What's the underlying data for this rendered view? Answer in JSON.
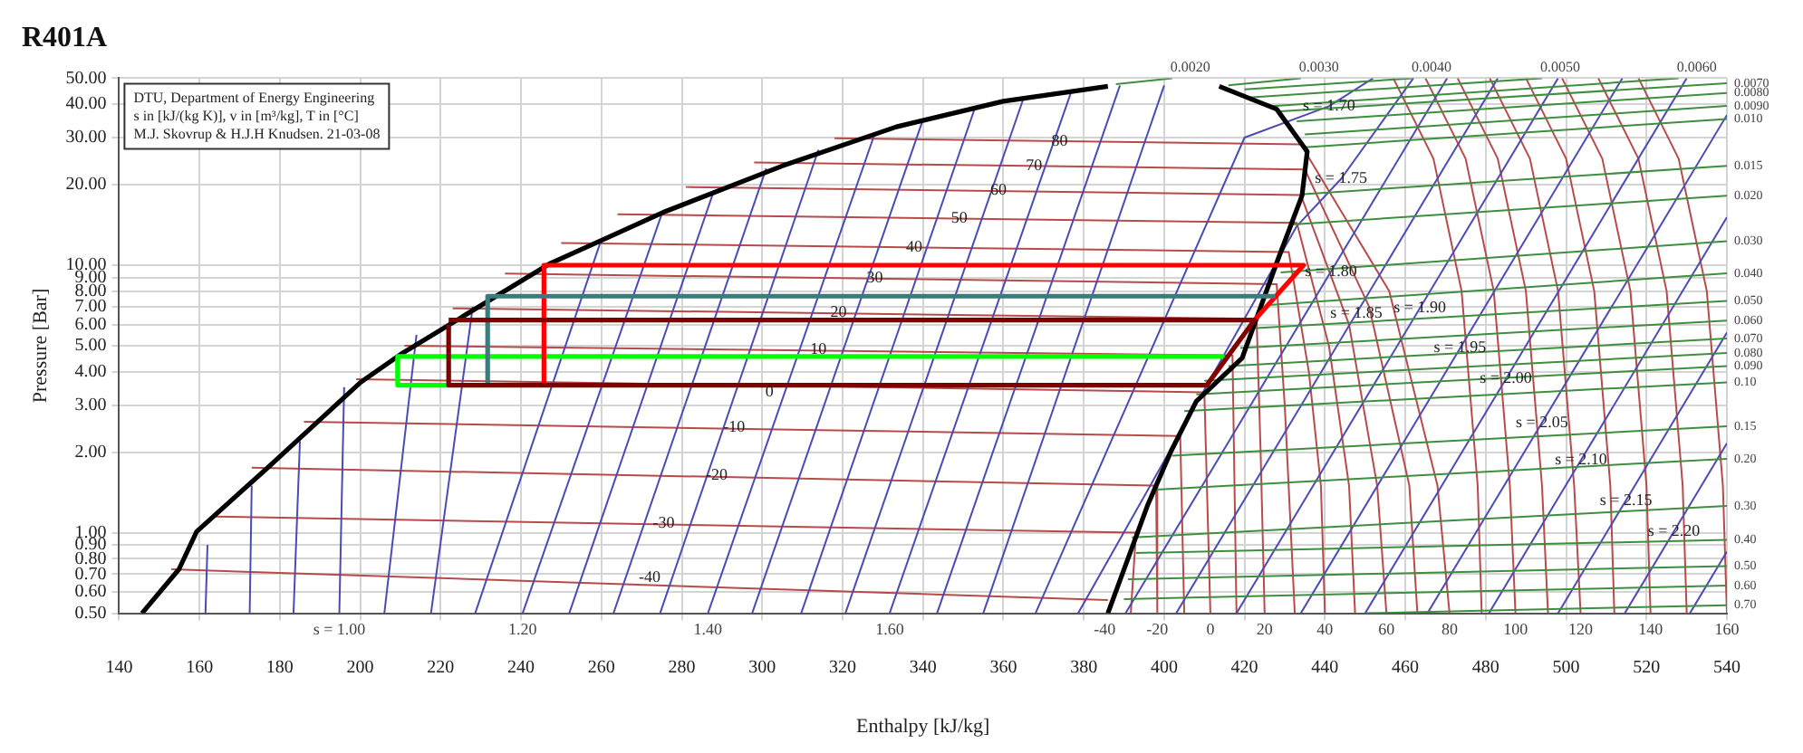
{
  "chart_data": {
    "type": "line",
    "title": "R401A",
    "xlabel": "Enthalpy [kJ/kg]",
    "ylabel": "Pressure [Bar]",
    "log": "y",
    "grid": true,
    "legend": false,
    "xlim": [
      140,
      540
    ],
    "xticks": [
      140,
      160,
      180,
      200,
      220,
      240,
      260,
      280,
      300,
      320,
      340,
      360,
      380,
      400,
      420,
      440,
      460,
      480,
      500,
      520,
      540
    ],
    "ylim": [
      0.5,
      50
    ],
    "yticks": [
      {
        "value": 0.5,
        "label": "0.50"
      },
      {
        "value": 0.6,
        "label": "0.60"
      },
      {
        "value": 0.7,
        "label": "0.70"
      },
      {
        "value": 0.8,
        "label": "0.80"
      },
      {
        "value": 0.9,
        "label": "0.90"
      },
      {
        "value": 1,
        "label": "1.00"
      },
      {
        "value": 2,
        "label": "2.00"
      },
      {
        "value": 3,
        "label": "3.00"
      },
      {
        "value": 4,
        "label": "4.00"
      },
      {
        "value": 5,
        "label": "5.00"
      },
      {
        "value": 6,
        "label": "6.00"
      },
      {
        "value": 7,
        "label": "7.00"
      },
      {
        "value": 8,
        "label": "8.00"
      },
      {
        "value": 9,
        "label": "9.00"
      },
      {
        "value": 10,
        "label": "10.00"
      },
      {
        "value": 20,
        "label": "20.00"
      },
      {
        "value": 30,
        "label": "30.00"
      },
      {
        "value": 40,
        "label": "40.00"
      },
      {
        "value": 50,
        "label": "50.00"
      }
    ],
    "series": [
      {
        "color": "#b84a4a",
        "x": [
          153,
          386
        ],
        "values": [
          0.73,
          0.56
        ]
      },
      {
        "color": "#b84a4a",
        "x": [
          163,
          393,
          391.7
        ],
        "values": [
          1.15,
          1.0,
          0.5
        ]
      },
      {
        "color": "#b84a4a",
        "x": [
          173,
          398,
          398.3
        ],
        "values": [
          1.75,
          1.5,
          0.5
        ]
      },
      {
        "color": "#b84a4a",
        "x": [
          186,
          404,
          405
        ],
        "values": [
          2.6,
          2.3,
          0.5
        ]
      },
      {
        "color": "#b84a4a",
        "x": [
          199,
          410,
          411.5
        ],
        "values": [
          3.75,
          3.35,
          0.5
        ]
      },
      {
        "color": "#b84a4a",
        "x": [
          211,
          417,
          418
        ],
        "values": [
          5.0,
          4.6,
          0.5
        ]
      },
      {
        "color": "#b84a4a",
        "x": [
          223,
          423,
          424,
          425
        ],
        "values": [
          6.9,
          6.3,
          2,
          0.5
        ]
      },
      {
        "color": "#b84a4a",
        "x": [
          236,
          428,
          430,
          432.5
        ],
        "values": [
          9.3,
          8.5,
          3,
          0.5
        ]
      },
      {
        "color": "#b84a4a",
        "x": [
          250,
          431,
          436,
          439,
          440
        ],
        "values": [
          12.1,
          11.2,
          4,
          1.5,
          0.5
        ]
      },
      {
        "color": "#b84a4a",
        "x": [
          264,
          433,
          441,
          446,
          447.5
        ],
        "values": [
          15.5,
          14.4,
          5,
          1.5,
          0.5
        ]
      },
      {
        "color": "#b84a4a",
        "x": [
          281,
          434,
          446,
          453,
          455.3
        ],
        "values": [
          19.6,
          18.3,
          6,
          1.5,
          0.5
        ]
      },
      {
        "color": "#b84a4a",
        "x": [
          298,
          435,
          451,
          461,
          463
        ],
        "values": [
          24.2,
          22.8,
          7,
          1.5,
          0.5
        ]
      },
      {
        "color": "#b84a4a",
        "x": [
          318,
          434,
          456,
          468,
          471
        ],
        "values": [
          29.8,
          28.3,
          8,
          1.5,
          0.5
        ]
      },
      {
        "color": "#b84a4a",
        "x": [
          457,
          467,
          474,
          478,
          479
        ],
        "values": [
          50,
          25,
          8,
          1.5,
          0.5
        ]
      },
      {
        "color": "#b84a4a",
        "x": [
          465,
          475,
          482,
          486,
          487.4
        ],
        "values": [
          50,
          25,
          8,
          1.5,
          0.5
        ]
      },
      {
        "color": "#b84a4a",
        "x": [
          473,
          483,
          490,
          494,
          495.5
        ],
        "values": [
          50,
          25,
          8,
          1.5,
          0.5
        ]
      },
      {
        "color": "#b84a4a",
        "x": [
          481,
          491,
          498,
          502,
          503.6
        ],
        "values": [
          50,
          25,
          8,
          1.5,
          0.5
        ]
      },
      {
        "color": "#b84a4a",
        "x": [
          490,
          500,
          507,
          511,
          512
        ],
        "values": [
          50,
          25,
          8,
          1.5,
          0.5
        ]
      },
      {
        "color": "#b84a4a",
        "x": [
          499,
          509,
          516,
          520,
          521
        ],
        "values": [
          50,
          25,
          8,
          1.5,
          0.5
        ]
      },
      {
        "color": "#b84a4a",
        "x": [
          508,
          518,
          525,
          529,
          530
        ],
        "values": [
          50,
          25,
          8,
          1.5,
          0.5
        ]
      },
      {
        "color": "#b84a4a",
        "x": [
          518,
          528,
          535,
          539,
          540
        ],
        "values": [
          50,
          25,
          8,
          1.5,
          0.5
        ]
      },
      {
        "color": "#4b4bb5",
        "x": [
          161.5,
          162
        ],
        "values": [
          0.5,
          0.9
        ]
      },
      {
        "color": "#4b4bb5",
        "x": [
          172.5,
          173
        ],
        "values": [
          0.5,
          1.5
        ]
      },
      {
        "color": "#4b4bb5",
        "x": [
          183.4,
          185
        ],
        "values": [
          0.5,
          2.2
        ]
      },
      {
        "color": "#4b4bb5",
        "x": [
          194.8,
          196
        ],
        "values": [
          0.5,
          3.5
        ]
      },
      {
        "color": "#4b4bb5",
        "x": [
          206,
          214
        ],
        "values": [
          0.5,
          5.5
        ]
      },
      {
        "color": "#4b4bb5",
        "x": [
          217.6,
          228
        ],
        "values": [
          0.5,
          7
        ]
      },
      {
        "color": "#4b4bb5",
        "x": [
          228.6,
          260
        ],
        "values": [
          0.5,
          12.5
        ]
      },
      {
        "color": "#4b4bb5",
        "x": [
          240.4,
          275
        ],
        "values": [
          0.5,
          15.5
        ]
      },
      {
        "color": "#4b4bb5",
        "x": [
          252,
          288
        ],
        "values": [
          0.5,
          19
        ]
      },
      {
        "color": "#4b4bb5",
        "x": [
          263,
          301
        ],
        "values": [
          0.5,
          23
        ]
      },
      {
        "color": "#4b4bb5",
        "x": [
          274.6,
          314
        ],
        "values": [
          0.5,
          27
        ]
      },
      {
        "color": "#4b4bb5",
        "x": [
          286.5,
          328
        ],
        "values": [
          0.5,
          31
        ]
      },
      {
        "color": "#4b4bb5",
        "x": [
          297.5,
          340
        ],
        "values": [
          0.5,
          35
        ]
      },
      {
        "color": "#4b4bb5",
        "x": [
          309.7,
          353
        ],
        "values": [
          0.5,
          39
        ]
      },
      {
        "color": "#4b4bb5",
        "x": [
          320.7,
          365
        ],
        "values": [
          0.5,
          42
        ]
      },
      {
        "color": "#4b4bb5",
        "x": [
          331.7,
          377
        ],
        "values": [
          0.5,
          45
        ]
      },
      {
        "color": "#4b4bb5",
        "x": [
          343.5,
          389
        ],
        "values": [
          0.5,
          47
        ]
      },
      {
        "color": "#4b4bb5",
        "x": [
          355,
          400
        ],
        "values": [
          0.5,
          47
        ]
      },
      {
        "color": "#4b4bb5",
        "x": [
          368,
          420,
          441,
          452
        ],
        "values": [
          0.5,
          30,
          39.3,
          50
        ]
      },
      {
        "color": "#4b4bb5",
        "x": [
          378.6,
          433,
          444,
          462
        ],
        "values": [
          0.5,
          14,
          21,
          50
        ]
      },
      {
        "color": "#4b4bb5",
        "x": [
          390.4,
          470.4
        ],
        "values": [
          0.5,
          50
        ]
      },
      {
        "color": "#4b4bb5",
        "x": [
          403,
          483
        ],
        "values": [
          0.5,
          50
        ]
      },
      {
        "color": "#4b4bb5",
        "x": [
          418,
          498
        ],
        "values": [
          0.5,
          50
        ]
      },
      {
        "color": "#4b4bb5",
        "x": [
          434,
          514
        ],
        "values": [
          0.5,
          50
        ]
      },
      {
        "color": "#4b4bb5",
        "x": [
          450,
          530
        ],
        "values": [
          0.5,
          50
        ]
      },
      {
        "color": "#4b4bb5",
        "x": [
          465.5,
          540
        ],
        "values": [
          0.5,
          36.4
        ]
      },
      {
        "color": "#4b4bb5",
        "x": [
          480.8,
          540
        ],
        "values": [
          0.5,
          15.1
        ]
      },
      {
        "color": "#4b4bb5",
        "x": [
          498,
          540
        ],
        "values": [
          0.5,
          5.6
        ]
      },
      {
        "color": "#4b4bb5",
        "x": [
          514.6,
          540
        ],
        "values": [
          0.5,
          2.16
        ]
      },
      {
        "color": "#4b4bb5",
        "x": [
          530.8,
          540
        ],
        "values": [
          0.5,
          0.85
        ]
      },
      {
        "color": "#3e8e3e",
        "x": [
          388,
          402
        ],
        "values": [
          47.5,
          50
        ]
      },
      {
        "color": "#3e8e3e",
        "x": [
          416,
          434
        ],
        "values": [
          47,
          50
        ]
      },
      {
        "color": "#3e8e3e",
        "x": [
          420,
          462
        ],
        "values": [
          45.4,
          50
        ]
      },
      {
        "color": "#3e8e3e",
        "x": [
          421,
          494
        ],
        "values": [
          42.3,
          50
        ]
      },
      {
        "color": "#3e8e3e",
        "x": [
          427,
          528
        ],
        "values": [
          39.3,
          50
        ]
      },
      {
        "color": "#3e8e3e",
        "x": [
          428,
          540
        ],
        "values": [
          37.5,
          47.9
        ]
      },
      {
        "color": "#3e8e3e",
        "x": [
          433,
          540
        ],
        "values": [
          34.5,
          44.0
        ]
      },
      {
        "color": "#3e8e3e",
        "x": [
          435,
          540
        ],
        "values": [
          30.8,
          39.4
        ]
      },
      {
        "color": "#3e8e3e",
        "x": [
          435,
          540
        ],
        "values": [
          27.6,
          35.2
        ]
      },
      {
        "color": "#3e8e3e",
        "x": [
          434,
          540
        ],
        "values": [
          18.4,
          23.5
        ]
      },
      {
        "color": "#3e8e3e",
        "x": [
          432,
          540
        ],
        "values": [
          14.2,
          18.2
        ]
      },
      {
        "color": "#3e8e3e",
        "x": [
          429,
          540
        ],
        "values": [
          9.4,
          12.3
        ]
      },
      {
        "color": "#3e8e3e",
        "x": [
          426,
          540
        ],
        "values": [
          7.1,
          9.33
        ]
      },
      {
        "color": "#3e8e3e",
        "x": [
          421,
          540
        ],
        "values": [
          5.8,
          7.35
        ]
      },
      {
        "color": "#3e8e3e",
        "x": [
          419,
          540
        ],
        "values": [
          4.9,
          6.21
        ]
      },
      {
        "color": "#3e8e3e",
        "x": [
          416,
          540
        ],
        "values": [
          4.2,
          5.32
        ]
      },
      {
        "color": "#3e8e3e",
        "x": [
          410,
          540
        ],
        "values": [
          3.7,
          4.7
        ]
      },
      {
        "color": "#3e8e3e",
        "x": [
          408,
          540
        ],
        "values": [
          3.29,
          4.2
        ]
      },
      {
        "color": "#3e8e3e",
        "x": [
          405,
          540
        ],
        "values": [
          2.85,
          3.65
        ]
      },
      {
        "color": "#3e8e3e",
        "x": [
          402,
          540
        ],
        "values": [
          1.94,
          2.5
        ]
      },
      {
        "color": "#3e8e3e",
        "x": [
          398,
          540
        ],
        "values": [
          1.45,
          1.89
        ]
      },
      {
        "color": "#3e8e3e",
        "x": [
          392,
          540
        ],
        "values": [
          0.96,
          1.26
        ]
      },
      {
        "color": "#3e8e3e",
        "x": [
          393,
          540
        ],
        "values": [
          0.84,
          0.94
        ]
      },
      {
        "color": "#3e8e3e",
        "x": [
          391,
          540
        ],
        "values": [
          0.67,
          0.75
        ]
      },
      {
        "color": "#3e8e3e",
        "x": [
          390,
          540
        ],
        "values": [
          0.565,
          0.634
        ]
      },
      {
        "color": "#3e8e3e",
        "x": [
          450,
          540
        ],
        "values": [
          0.5,
          0.536
        ]
      },
      {
        "color": "#000000",
        "x": [
          145.7,
          154.9,
          159.3,
          176.8,
          200.1,
          210.6,
          247,
          276,
          305,
          333.4,
          360,
          386,
          400,
          413.7,
          428,
          435.6,
          434.3,
          428.2,
          419.4,
          408,
          401.8,
          396,
          386
        ],
        "values": [
          0.5,
          0.73,
          1.01,
          1.74,
          3.65,
          4.7,
          10.1,
          15.9,
          23.5,
          32.9,
          41,
          46.6,
          null,
          46.6,
          38.3,
          26.6,
          18.2,
          10.4,
          4.5,
          3.1,
          2.03,
          1.28,
          0.5
        ]
      },
      {
        "color": "#00ff00",
        "x": [
          222,
          209.3,
          209.3,
          415
        ],
        "values": [
          3.56,
          3.56,
          4.56,
          4.56
        ]
      },
      {
        "color": "#ff0000",
        "x": [
          245.7,
          245.7,
          434.7,
          422.5
        ],
        "values": [
          3.56,
          10,
          10,
          6.24
        ]
      },
      {
        "color": "#3d7a7a",
        "x": [
          231.7,
          231.7,
          427.7
        ],
        "values": [
          3.56,
          7.66,
          7.66
        ]
      },
      {
        "color": "#800000",
        "x": [
          222,
          422.5,
          410.6,
          222,
          222
        ],
        "values": [
          6.24,
          6.24,
          3.56,
          3.56,
          6
        ]
      }
    ],
    "annotations": [
      "DTU, Department of Energy Engineering",
      "s in [kJ/(kg K)], v in [m³/kg], T in [°C]",
      "M.J. Skovrup & H.J.H Knudsen. 21-03-08",
      {
        "text": "-40",
        "x": 272,
        "y": 0.68
      },
      {
        "text": "-30",
        "x": 275.5,
        "y": 1.08
      },
      {
        "text": "-20",
        "x": 288.7,
        "y": 1.64
      },
      {
        "text": "-10",
        "x": 293,
        "y": 2.47
      },
      {
        "text": "0",
        "x": 301.8,
        "y": 3.35
      },
      {
        "text": "10",
        "x": 314,
        "y": 4.83
      },
      {
        "text": "20",
        "x": 319,
        "y": 6.67
      },
      {
        "text": "30",
        "x": 328,
        "y": 8.94
      },
      {
        "text": "40",
        "x": 337.8,
        "y": 11.7
      },
      {
        "text": "50",
        "x": 349,
        "y": 15.0
      },
      {
        "text": "60",
        "x": 358.8,
        "y": 19.0
      },
      {
        "text": "70",
        "x": 367.6,
        "y": 23.5
      },
      {
        "text": "80",
        "x": 374,
        "y": 29.0
      },
      {
        "text": "-40",
        "x": 385.2,
        "y": 0.5
      },
      {
        "text": "-20",
        "x": 398.3,
        "y": 0.5
      },
      {
        "text": "0",
        "x": 411.5,
        "y": 0.5
      },
      {
        "text": "20",
        "x": 425,
        "y": 0.5
      },
      {
        "text": "40",
        "x": 440,
        "y": 0.5
      },
      {
        "text": "60",
        "x": 455.3,
        "y": 0.5
      },
      {
        "text": "80",
        "x": 471,
        "y": 0.5
      },
      {
        "text": "100",
        "x": 487.4,
        "y": 0.5
      },
      {
        "text": "120",
        "x": 503.6,
        "y": 0.5
      },
      {
        "text": "140",
        "x": 521,
        "y": 0.5
      },
      {
        "text": "160",
        "x": 540,
        "y": 0.5
      },
      {
        "text": "s = 1.00",
        "x": 194.8,
        "y": 0.5
      },
      {
        "text": "1.20",
        "x": 240.4,
        "y": 0.5
      },
      {
        "text": "1.40",
        "x": 286.5,
        "y": 0.5
      },
      {
        "text": "1.60",
        "x": 331.7,
        "y": 0.5
      },
      {
        "text": "s = 1.70",
        "x": 441,
        "y": 39.3
      },
      {
        "text": "s = 1.75",
        "x": 444,
        "y": 21
      },
      {
        "text": "s = 1.80",
        "x": 441.5,
        "y": 9.45
      },
      {
        "text": "s = 1.85",
        "x": 447.8,
        "y": 6.6
      },
      {
        "text": "s = 1.90",
        "x": 463.6,
        "y": 6.9
      },
      {
        "text": "s = 1.95",
        "x": 473.6,
        "y": 4.9
      },
      {
        "text": "s = 2.00",
        "x": 485,
        "y": 3.76
      },
      {
        "text": "s = 2.05",
        "x": 494,
        "y": 2.58
      },
      {
        "text": "s = 2.10",
        "x": 503.7,
        "y": 1.87
      },
      {
        "text": "s = 2.15",
        "x": 514.9,
        "y": 1.32
      },
      {
        "text": "s = 2.20",
        "x": 526.8,
        "y": 1.01
      },
      {
        "text": "0.0020",
        "x": 402,
        "y": 50
      },
      {
        "text": "0.0030",
        "x": 434,
        "y": 50
      },
      {
        "text": "0.0040",
        "x": 462,
        "y": 50
      },
      {
        "text": "0.0050",
        "x": 494,
        "y": 50
      },
      {
        "text": "0.0060",
        "x": 528,
        "y": 50
      },
      {
        "text": "0.0070",
        "x": 540,
        "y": 47.9
      },
      {
        "text": "0.0080",
        "x": 540,
        "y": 44.0
      },
      {
        "text": "0.0090",
        "x": 540,
        "y": 39.4
      },
      {
        "text": "0.010",
        "x": 540,
        "y": 35.2
      },
      {
        "text": "0.015",
        "x": 540,
        "y": 23.5
      },
      {
        "text": "0.020",
        "x": 540,
        "y": 18.2
      },
      {
        "text": "0.030",
        "x": 540,
        "y": 12.3
      },
      {
        "text": "0.040",
        "x": 540,
        "y": 9.33
      },
      {
        "text": "0.050",
        "x": 540,
        "y": 7.35
      },
      {
        "text": "0.060",
        "x": 540,
        "y": 6.21
      },
      {
        "text": "0.070",
        "x": 540,
        "y": 5.32
      },
      {
        "text": "0.080",
        "x": 540,
        "y": 4.7
      },
      {
        "text": "0.090",
        "x": 540,
        "y": 4.2
      },
      {
        "text": "0.10",
        "x": 540,
        "y": 3.65
      },
      {
        "text": "0.15",
        "x": 540,
        "y": 2.5
      },
      {
        "text": "0.20",
        "x": 540,
        "y": 1.89
      },
      {
        "text": "0.30",
        "x": 540,
        "y": 1.26
      },
      {
        "text": "0.40",
        "x": 540,
        "y": 0.94
      },
      {
        "text": "0.50",
        "x": 540,
        "y": 0.75
      },
      {
        "text": "0.60",
        "x": 540,
        "y": 0.634
      },
      {
        "text": "0.70",
        "x": 540,
        "y": 0.536
      }
    ]
  }
}
